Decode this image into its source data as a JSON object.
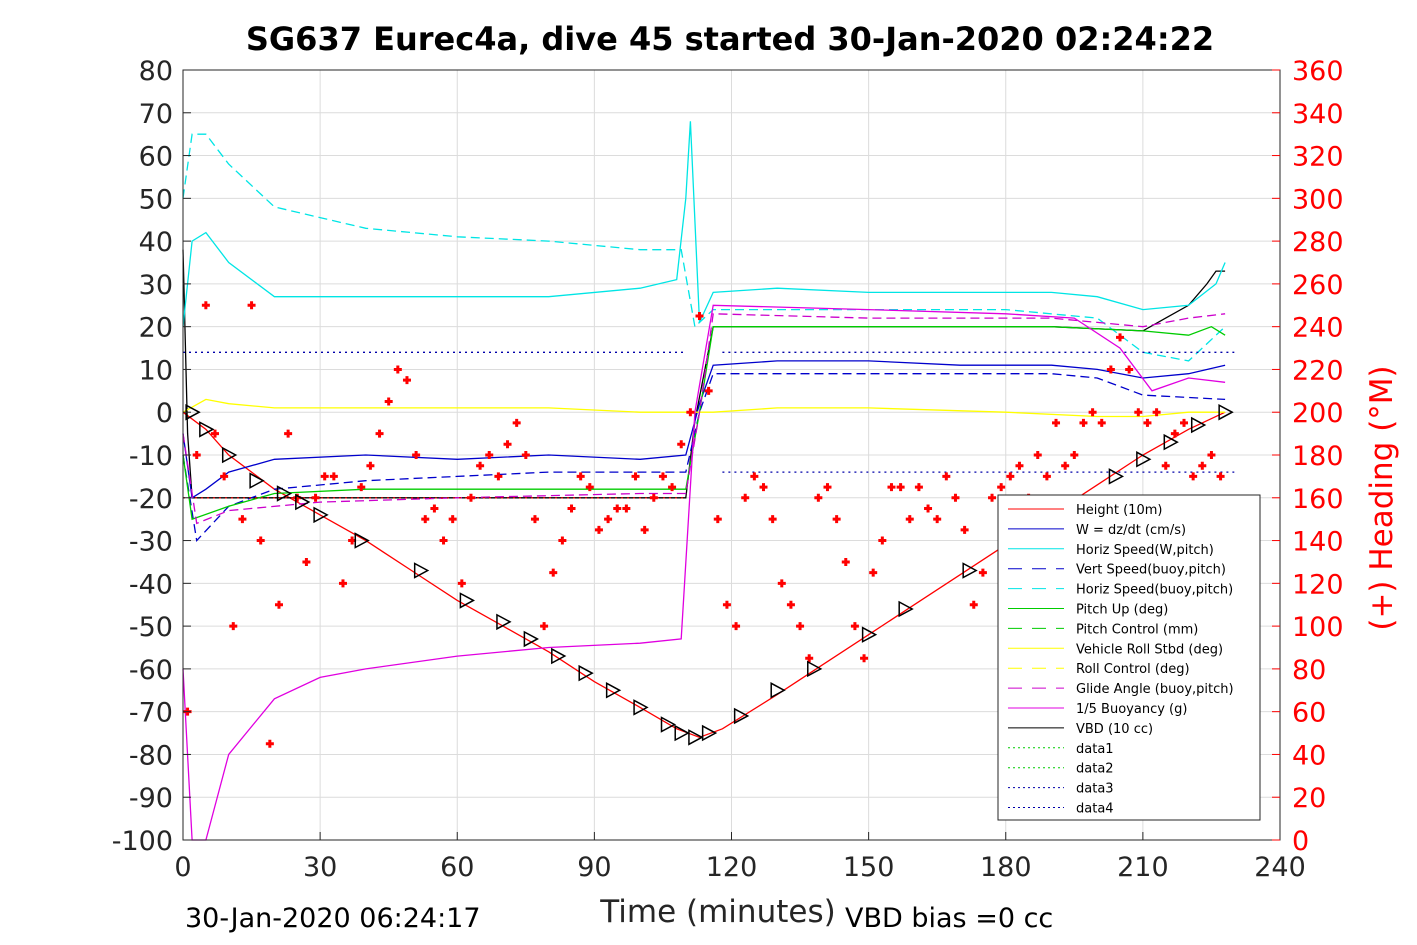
{
  "chart_data": {
    "type": "line",
    "title": "SG637 Eurec4a, dive 45 started 30-Jan-2020 02:24:22",
    "xlabel": "Time (minutes)",
    "ylabel": "",
    "ylabel_right": "(+) Heading (°M)",
    "xlim": [
      0,
      240
    ],
    "ylim": [
      -100,
      80
    ],
    "ylim_right": [
      0,
      360
    ],
    "x_ticks": [
      "0",
      "30",
      "60",
      "90",
      "120",
      "150",
      "180",
      "210",
      "240"
    ],
    "y_ticks": [
      "80",
      "70",
      "60",
      "50",
      "40",
      "30",
      "20",
      "10",
      "0",
      "-10",
      "-20",
      "-30",
      "-40",
      "-50",
      "-60",
      "-70",
      "-80",
      "-90",
      "-100"
    ],
    "y_ticks_right": [
      "360",
      "340",
      "320",
      "300",
      "280",
      "260",
      "240",
      "220",
      "200",
      "180",
      "160",
      "140",
      "120",
      "100",
      "80",
      "60",
      "40",
      "20",
      "0"
    ],
    "grid": true,
    "legend_position": "bottom-right",
    "footer_left": "30-Jan-2020 06:24:17",
    "footer_right": "VBD bias =0 cc",
    "colors": {
      "height": "#ff0000",
      "w": "#0000cc",
      "horiz_w": "#00e5e5",
      "vert_buoy": "#0000cc",
      "horiz_buoy": "#00e5e5",
      "pitch": "#00cc00",
      "pitch_ctrl": "#00cc00",
      "roll": "#ffff00",
      "roll_ctrl": "#ffff00",
      "glide": "#cc00cc",
      "buoyancy": "#e000e0",
      "vbd": "#000000",
      "heading": "#ff0000"
    },
    "legend": [
      {
        "label": "Height (10m)",
        "color": "#ff0000",
        "dash": "solid"
      },
      {
        "label": "W = dz/dt (cm/s)",
        "color": "#0000cc",
        "dash": "solid"
      },
      {
        "label": "Horiz Speed(W,pitch)",
        "color": "#00e5e5",
        "dash": "solid"
      },
      {
        "label": "Vert Speed(buoy,pitch)",
        "color": "#0000cc",
        "dash": "dashed"
      },
      {
        "label": "Horiz Speed(buoy,pitch)",
        "color": "#00e5e5",
        "dash": "dashed"
      },
      {
        "label": "Pitch Up (deg)",
        "color": "#00cc00",
        "dash": "solid"
      },
      {
        "label": "Pitch Control (mm)",
        "color": "#00cc00",
        "dash": "dashed"
      },
      {
        "label": "Vehicle Roll Stbd (deg)",
        "color": "#ffff00",
        "dash": "solid"
      },
      {
        "label": "Roll Control (deg)",
        "color": "#ffff00",
        "dash": "dashed"
      },
      {
        "label": "Glide Angle (buoy,pitch)",
        "color": "#cc00cc",
        "dash": "dashed"
      },
      {
        "label": "1/5 Buoyancy (g)",
        "color": "#e000e0",
        "dash": "solid"
      },
      {
        "label": "VBD (10 cc)",
        "color": "#000000",
        "dash": "solid"
      },
      {
        "label": "data1",
        "color": "#00cc00",
        "dash": "dotted"
      },
      {
        "label": "data2",
        "color": "#00cc00",
        "dash": "dotted"
      },
      {
        "label": "data3",
        "color": "#0000aa",
        "dash": "dotted"
      },
      {
        "label": "data4",
        "color": "#0000aa",
        "dash": "dotted"
      }
    ],
    "series": [
      {
        "name": "Height (10m)",
        "style": "line",
        "axis": "left",
        "x": [
          0,
          5,
          10,
          20,
          30,
          40,
          50,
          60,
          70,
          80,
          90,
          100,
          108,
          113,
          118,
          130,
          140,
          150,
          160,
          170,
          180,
          190,
          200,
          210,
          220,
          228
        ],
        "y": [
          0,
          -4,
          -10,
          -18,
          -24,
          -30,
          -37,
          -44,
          -50,
          -56,
          -63,
          -69,
          -74,
          -76,
          -74,
          -66,
          -59,
          -52,
          -45,
          -38,
          -31,
          -24,
          -17,
          -10,
          -4,
          0
        ]
      },
      {
        "name": "VBD (10 cc)",
        "style": "line",
        "axis": "left",
        "x": [
          0,
          1,
          2,
          110,
          112,
          116,
          190,
          210,
          215,
          220,
          224,
          226,
          228
        ],
        "y": [
          38,
          -5,
          -20,
          -20,
          -2,
          20,
          20,
          19,
          22,
          25,
          30,
          33,
          33
        ]
      },
      {
        "name": "W = dz/dt (cm/s)",
        "style": "line",
        "axis": "left",
        "x": [
          0,
          2,
          5,
          10,
          20,
          40,
          60,
          80,
          100,
          110,
          113,
          116,
          130,
          150,
          170,
          190,
          200,
          210,
          220,
          228
        ],
        "y": [
          -5,
          -20,
          -18,
          -14,
          -11,
          -10,
          -11,
          -10,
          -11,
          -10,
          2,
          11,
          12,
          12,
          11,
          11,
          10,
          8,
          9,
          11
        ]
      },
      {
        "name": "Horiz Speed(W,pitch)",
        "style": "line",
        "axis": "left",
        "x": [
          0,
          2,
          5,
          10,
          20,
          40,
          60,
          80,
          100,
          108,
          110,
          111,
          113,
          116,
          130,
          150,
          170,
          190,
          200,
          210,
          220,
          226,
          228
        ],
        "y": [
          20,
          40,
          42,
          35,
          27,
          27,
          27,
          27,
          29,
          31,
          50,
          68,
          21,
          28,
          29,
          28,
          28,
          28,
          27,
          24,
          25,
          30,
          35
        ]
      },
      {
        "name": "Vert Speed(buoy,pitch)",
        "style": "dashed",
        "axis": "left",
        "x": [
          0,
          3,
          10,
          20,
          40,
          60,
          80,
          100,
          110,
          113,
          116,
          150,
          190,
          200,
          210,
          228
        ],
        "y": [
          -10,
          -30,
          -22,
          -18,
          -16,
          -15,
          -14,
          -14,
          -14,
          0,
          9,
          9,
          9,
          8,
          4,
          3
        ]
      },
      {
        "name": "Horiz Speed(buoy,pitch)",
        "style": "dashed",
        "axis": "left",
        "x": [
          0,
          2,
          5,
          10,
          20,
          40,
          60,
          80,
          100,
          109,
          112,
          116,
          150,
          180,
          200,
          210,
          220,
          228
        ],
        "y": [
          50,
          65,
          65,
          58,
          48,
          43,
          41,
          40,
          38,
          38,
          20,
          24,
          24,
          24,
          22,
          14,
          12,
          20
        ]
      },
      {
        "name": "Pitch Up (deg)",
        "style": "line",
        "axis": "left",
        "x": [
          0,
          2,
          10,
          20,
          40,
          60,
          80,
          100,
          110,
          113,
          116,
          150,
          190,
          210,
          220,
          225,
          228
        ],
        "y": [
          -10,
          -25,
          -22,
          -19,
          -18,
          -18,
          -18,
          -18,
          -18,
          0,
          20,
          20,
          20,
          19,
          18,
          20,
          18
        ]
      },
      {
        "name": "Vehicle Roll Stbd (deg)",
        "style": "line",
        "axis": "left",
        "x": [
          0,
          5,
          10,
          20,
          40,
          60,
          80,
          100,
          110,
          116,
          130,
          150,
          180,
          200,
          210,
          220,
          228
        ],
        "y": [
          0,
          3,
          2,
          1,
          1,
          1,
          1,
          0,
          0,
          0,
          1,
          1,
          0,
          -1,
          -1,
          0,
          0
        ]
      },
      {
        "name": "Glide Angle (buoy,pitch)",
        "style": "dashed",
        "axis": "left",
        "x": [
          0,
          3,
          10,
          30,
          60,
          100,
          110,
          113,
          116,
          150,
          190,
          200,
          210,
          220,
          228
        ],
        "y": [
          -5,
          -26,
          -23,
          -21,
          -20,
          -19,
          -19,
          0,
          23,
          22,
          22,
          21,
          20,
          22,
          23
        ]
      },
      {
        "name": "1/5 Buoyancy (g)",
        "style": "line",
        "axis": "left",
        "x": [
          0,
          2,
          5,
          10,
          20,
          30,
          40,
          60,
          80,
          100,
          109,
          112,
          116,
          150,
          180,
          195,
          205,
          212,
          220,
          228
        ],
        "y": [
          -60,
          -100,
          -100,
          -80,
          -67,
          -62,
          -60,
          -57,
          -55,
          -54,
          -53,
          0,
          25,
          24,
          23,
          22,
          15,
          5,
          8,
          7
        ]
      },
      {
        "name": "data3",
        "style": "dotted",
        "axis": "left",
        "x": [
          0,
          110
        ],
        "y": [
          14,
          14
        ]
      },
      {
        "name": "data4",
        "style": "dotted",
        "axis": "left",
        "x": [
          118,
          230
        ],
        "y": [
          14,
          14
        ]
      },
      {
        "name": "data1",
        "style": "dotted",
        "axis": "left",
        "x": [
          118,
          230
        ],
        "y": [
          -14,
          -14
        ]
      },
      {
        "name": "data2",
        "style": "dotted",
        "axis": "left",
        "x": [
          0,
          110
        ],
        "y": [
          -20,
          -20
        ]
      },
      {
        "name": "Heading",
        "style": "markers",
        "axis": "right",
        "x": [
          1,
          3,
          5,
          7,
          9,
          11,
          13,
          15,
          17,
          19,
          21,
          23,
          25,
          27,
          29,
          31,
          33,
          35,
          37,
          39,
          41,
          43,
          45,
          47,
          49,
          51,
          53,
          55,
          57,
          59,
          61,
          63,
          65,
          67,
          69,
          71,
          73,
          75,
          77,
          79,
          81,
          83,
          85,
          87,
          89,
          91,
          93,
          95,
          97,
          99,
          101,
          103,
          105,
          107,
          109,
          111,
          113,
          115,
          117,
          119,
          121,
          123,
          125,
          127,
          129,
          131,
          133,
          135,
          137,
          139,
          141,
          143,
          145,
          147,
          149,
          151,
          153,
          155,
          157,
          159,
          161,
          163,
          165,
          167,
          169,
          171,
          173,
          175,
          177,
          179,
          181,
          183,
          185,
          187,
          189,
          191,
          193,
          195,
          197,
          199,
          201,
          203,
          205,
          207,
          209,
          211,
          213,
          215,
          217,
          219,
          221,
          223,
          225,
          227
        ],
        "y": [
          60,
          180,
          250,
          190,
          170,
          100,
          150,
          250,
          140,
          45,
          110,
          190,
          160,
          130,
          160,
          170,
          170,
          120,
          140,
          165,
          175,
          190,
          205,
          220,
          215,
          180,
          150,
          155,
          140,
          150,
          120,
          160,
          175,
          180,
          170,
          185,
          195,
          180,
          150,
          100,
          125,
          140,
          155,
          170,
          165,
          145,
          150,
          155,
          155,
          170,
          145,
          160,
          170,
          165,
          185,
          200,
          245,
          210,
          150,
          110,
          100,
          160,
          170,
          165,
          150,
          120,
          110,
          100,
          85,
          160,
          165,
          150,
          130,
          100,
          85,
          125,
          140,
          165,
          165,
          150,
          165,
          155,
          150,
          170,
          160,
          145,
          110,
          125,
          160,
          165,
          170,
          175,
          160,
          180,
          170,
          195,
          175,
          180,
          195,
          200,
          195,
          220,
          235,
          220,
          200,
          195,
          200,
          175,
          190,
          195,
          170,
          175,
          180,
          170
        ]
      },
      {
        "name": "Triangles",
        "style": "triangles",
        "axis": "left",
        "x": [
          2,
          5,
          10,
          16,
          22,
          26,
          30,
          39,
          52,
          62,
          70,
          76,
          82,
          88,
          94,
          100,
          106,
          109,
          112,
          115,
          122,
          130,
          138,
          150,
          158,
          172,
          184,
          194,
          204,
          210,
          216,
          222,
          228
        ],
        "y": [
          0,
          -4,
          -10,
          -16,
          -19,
          -21,
          -24,
          -30,
          -37,
          -44,
          -49,
          -53,
          -57,
          -61,
          -65,
          -69,
          -73,
          -75,
          -76,
          -75,
          -71,
          -65,
          -60,
          -52,
          -46,
          -37,
          -29,
          -22,
          -15,
          -11,
          -7,
          -3,
          0
        ]
      }
    ]
  }
}
